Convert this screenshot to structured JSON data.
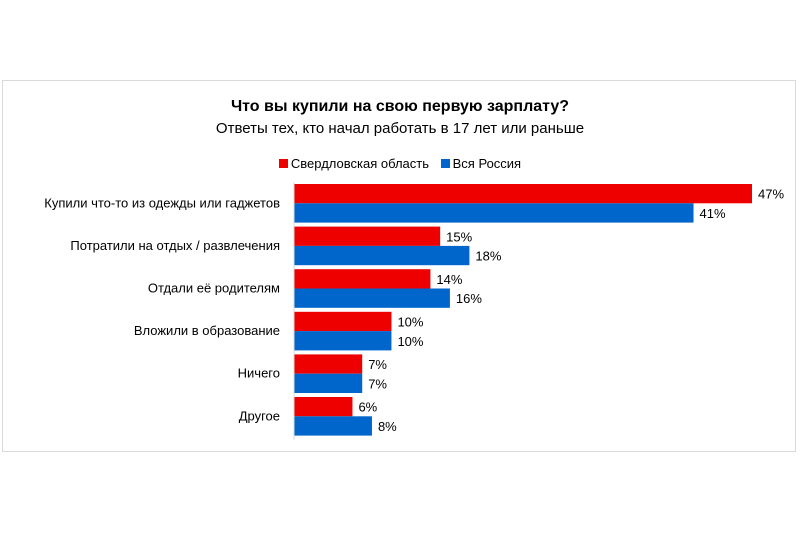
{
  "chart_data": {
    "type": "bar",
    "orientation": "horizontal",
    "title": "Что вы купили на свою первую зарплату?",
    "subtitle": "Ответы тех, кто начал работать в 17 лет или раньше",
    "categories": [
      "Купили что-то из одежды или гаджетов",
      "Потратили на отдых / развлечения",
      "Отдали её родителям",
      "Вложили в образование",
      "Ничего",
      "Другое"
    ],
    "series": [
      {
        "name": "Свердловская область",
        "color": "#EE0000",
        "values": [
          47,
          15,
          14,
          10,
          7,
          6
        ],
        "labels": [
          "47%",
          "15%",
          "14%",
          "10%",
          "7%",
          "6%"
        ]
      },
      {
        "name": "Вся Россия",
        "color": "#0066CC",
        "values": [
          41,
          18,
          16,
          10,
          7,
          8
        ],
        "labels": [
          "41%",
          "18%",
          "16%",
          "10%",
          "7%",
          "8%"
        ]
      }
    ],
    "unit": "%",
    "legend_position": "top",
    "grid": false,
    "xlim": [
      0,
      47
    ]
  }
}
